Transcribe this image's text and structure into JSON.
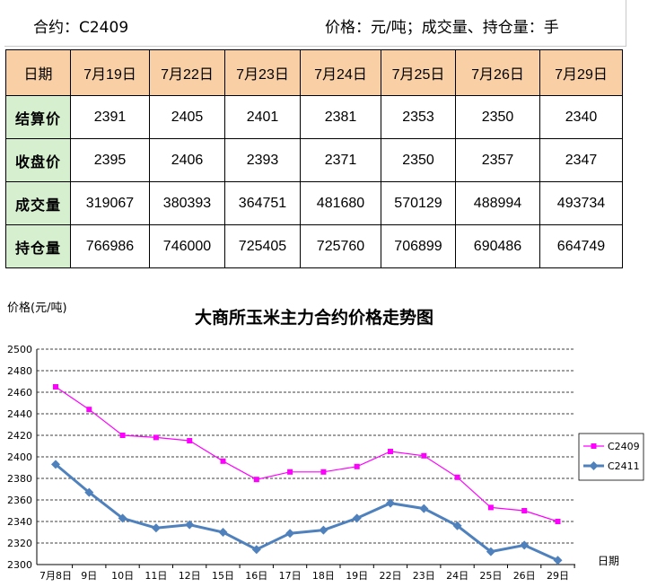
{
  "header": {
    "contract": "合约：C2409",
    "units": "价格：元/吨；成交量、持仓量：手"
  },
  "table": {
    "columns": [
      "日期",
      "7月19日",
      "7月22日",
      "7月23日",
      "7月24日",
      "7月25日",
      "7月26日",
      "7月29日"
    ],
    "rows": [
      {
        "label": "结算价",
        "values": [
          "2391",
          "2405",
          "2401",
          "2381",
          "2353",
          "2350",
          "2340"
        ]
      },
      {
        "label": "收盘价",
        "values": [
          "2395",
          "2406",
          "2393",
          "2371",
          "2350",
          "2357",
          "2347"
        ]
      },
      {
        "label": "成交量",
        "values": [
          "319067",
          "380393",
          "364751",
          "481680",
          "570129",
          "488994",
          "493734"
        ]
      },
      {
        "label": "持仓量",
        "values": [
          "766986",
          "746000",
          "725405",
          "725760",
          "706899",
          "690486",
          "664749"
        ]
      }
    ]
  },
  "chart_data": {
    "type": "line",
    "title": "大商所玉米主力合约价格走势图",
    "ylabel": "价格(元/吨)",
    "xlabel": "日期",
    "categories": [
      "7月8日",
      "9日",
      "10日",
      "11日",
      "12日",
      "15日",
      "16日",
      "17日",
      "18日",
      "19日",
      "22日",
      "23日",
      "24日",
      "25日",
      "26日",
      "29日"
    ],
    "ylim": [
      2300,
      2500
    ],
    "yticks": [
      2300,
      2320,
      2340,
      2360,
      2380,
      2400,
      2420,
      2440,
      2460,
      2480,
      2500
    ],
    "grid": true,
    "legend_position": "right",
    "series": [
      {
        "name": "C2409",
        "color": "#ff00ff",
        "marker": "square",
        "values": [
          2465,
          2444,
          2420,
          2418,
          2415,
          2396,
          2379,
          2386,
          2386,
          2391,
          2405,
          2401,
          2381,
          2353,
          2350,
          2340
        ]
      },
      {
        "name": "C2411",
        "color": "#4f81bd",
        "marker": "diamond",
        "values": [
          2393,
          2367,
          2343,
          2334,
          2337,
          2330,
          2314,
          2329,
          2332,
          2343,
          2357,
          2352,
          2336,
          2312,
          2318,
          2304
        ]
      }
    ]
  }
}
